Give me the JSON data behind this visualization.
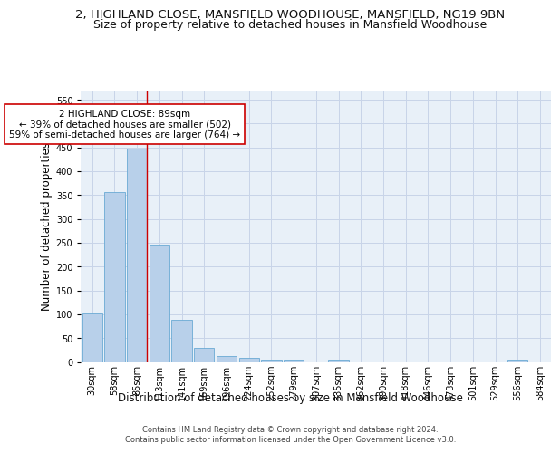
{
  "title1": "2, HIGHLAND CLOSE, MANSFIELD WOODHOUSE, MANSFIELD, NG19 9BN",
  "title2": "Size of property relative to detached houses in Mansfield Woodhouse",
  "xlabel": "Distribution of detached houses by size in Mansfield Woodhouse",
  "ylabel": "Number of detached properties",
  "bin_labels": [
    "30sqm",
    "58sqm",
    "85sqm",
    "113sqm",
    "141sqm",
    "169sqm",
    "196sqm",
    "224sqm",
    "252sqm",
    "279sqm",
    "307sqm",
    "335sqm",
    "362sqm",
    "390sqm",
    "418sqm",
    "446sqm",
    "473sqm",
    "501sqm",
    "529sqm",
    "556sqm",
    "584sqm"
  ],
  "bar_values": [
    102,
    356,
    447,
    246,
    88,
    30,
    13,
    9,
    5,
    5,
    0,
    5,
    0,
    0,
    0,
    0,
    0,
    0,
    0,
    5,
    0
  ],
  "bar_color": "#b8d0ea",
  "bar_edge_color": "#6aaad4",
  "ylim": [
    0,
    570
  ],
  "yticks": [
    0,
    50,
    100,
    150,
    200,
    250,
    300,
    350,
    400,
    450,
    500,
    550
  ],
  "vline_x_idx": 2,
  "vline_color": "#cc0000",
  "annotation_text": "2 HIGHLAND CLOSE: 89sqm\n← 39% of detached houses are smaller (502)\n59% of semi-detached houses are larger (764) →",
  "annotation_box_color": "#ffffff",
  "annotation_box_edge": "#cc0000",
  "footer1": "Contains HM Land Registry data © Crown copyright and database right 2024.",
  "footer2": "Contains public sector information licensed under the Open Government Licence v3.0.",
  "bg_color": "#ffffff",
  "plot_bg_color": "#e8f0f8",
  "grid_color": "#c8d4e8",
  "title1_fontsize": 9.5,
  "title2_fontsize": 9,
  "xlabel_fontsize": 8.5,
  "ylabel_fontsize": 8.5,
  "tick_fontsize": 7,
  "ann_fontsize": 7.5,
  "footer_fontsize": 6
}
